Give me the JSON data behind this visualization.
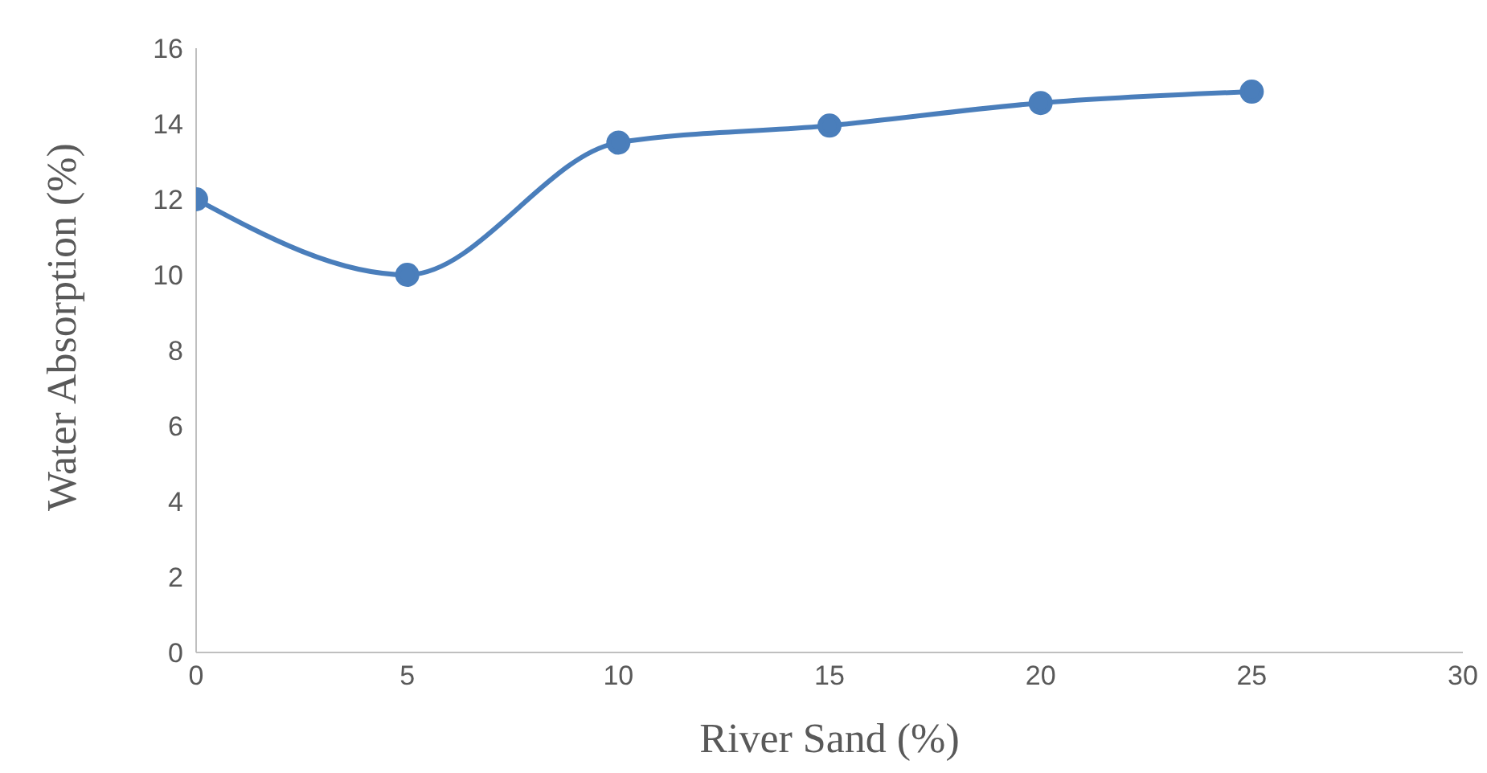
{
  "chart_data": {
    "type": "line",
    "xlabel": "River Sand (%)",
    "ylabel": "Water Absorption (%)",
    "x": [
      0,
      5,
      10,
      15,
      20,
      25
    ],
    "series": [
      {
        "color": "#4a7ebb",
        "values": [
          12,
          10,
          13.5,
          13.95,
          14.55,
          14.85
        ]
      }
    ],
    "xlim": [
      0,
      30
    ],
    "xticks": [
      0,
      5,
      10,
      15,
      20,
      25,
      30
    ],
    "ylim": [
      0,
      16
    ],
    "yticks": [
      0,
      2,
      4,
      6,
      8,
      10,
      12,
      14,
      16
    ],
    "grid": false,
    "legend": false,
    "marker": "circle",
    "line_style": "solid"
  }
}
